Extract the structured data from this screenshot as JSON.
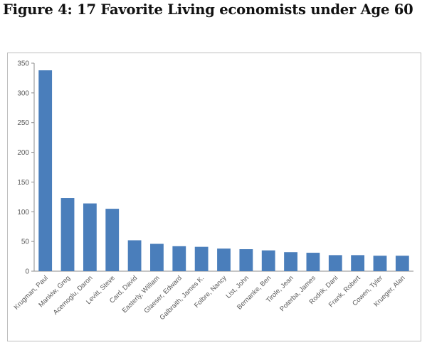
{
  "figure": {
    "title": "Figure 4: 17 Favorite Living economists under Age 60"
  },
  "chart_data": {
    "type": "bar",
    "title": "Figure 4: 17 Favorite Living economists under Age 60",
    "xlabel": "",
    "ylabel": "",
    "ylim": [
      0,
      350
    ],
    "yticks": [
      0,
      50,
      100,
      150,
      200,
      250,
      300,
      350
    ],
    "grid": false,
    "legend": "none",
    "bar_color": "#4a7ebb",
    "categories": [
      "Krugman, Paul",
      "Mankiw, Greg",
      "Acemoglu, Daron",
      "Levitt, Steve",
      "Card, David",
      "Easterly, William",
      "Glaeser, Edward",
      "Galbraith, James K.",
      "Folbre, Nancy",
      "List, John",
      "Bernanke, Ben",
      "Tirole, Jean",
      "Poterba, James",
      "Rodrik, Dani",
      "Frank, Robert",
      "Cowen, Tyler",
      "Krueger, Alan"
    ],
    "values": [
      338,
      123,
      114,
      105,
      52,
      46,
      42,
      41,
      38,
      37,
      35,
      32,
      31,
      27,
      27,
      26,
      26
    ]
  }
}
